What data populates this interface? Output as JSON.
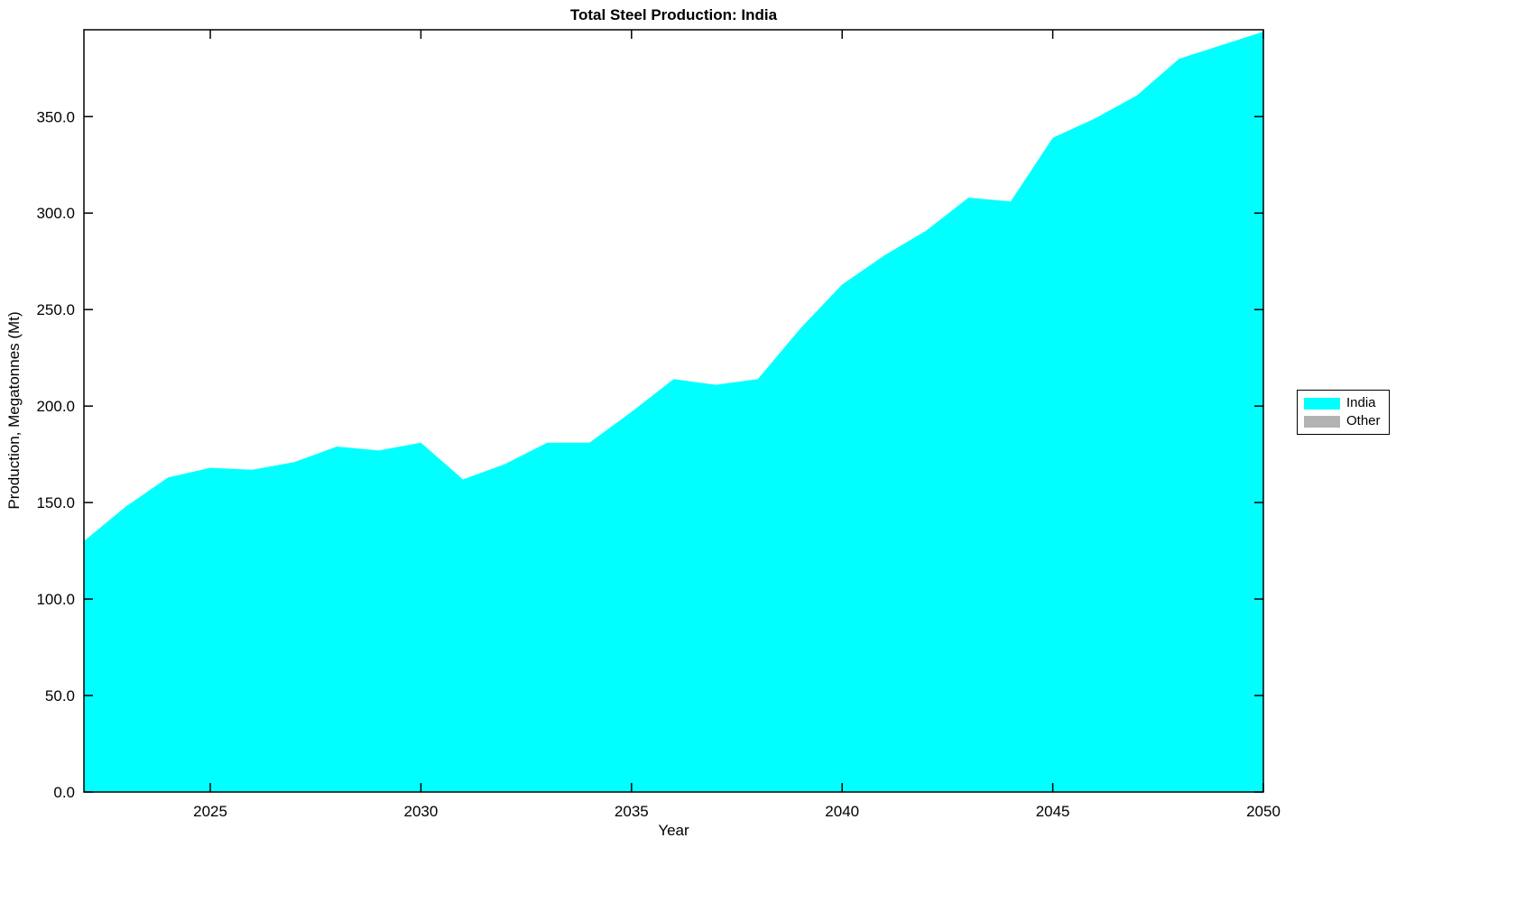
{
  "chart_data": {
    "type": "area",
    "title": "Total Steel Production: India",
    "xlabel": "Year",
    "ylabel": "Production, Megatonnes (Mt)",
    "xlim": [
      2022,
      2050
    ],
    "ylim": [
      0,
      395
    ],
    "grid": false,
    "x_ticks": [
      2025,
      2030,
      2035,
      2040,
      2045,
      2050
    ],
    "y_ticks": [
      0,
      50,
      100,
      150,
      200,
      250,
      300,
      350
    ],
    "y_tick_labels": [
      "0.0",
      "50.0",
      "100.0",
      "150.0",
      "200.0",
      "250.0",
      "300.0",
      "350.0"
    ],
    "x": [
      2022,
      2023,
      2024,
      2025,
      2026,
      2027,
      2028,
      2029,
      2030,
      2031,
      2032,
      2033,
      2034,
      2035,
      2036,
      2037,
      2038,
      2039,
      2040,
      2041,
      2042,
      2043,
      2044,
      2045,
      2046,
      2047,
      2048,
      2049,
      2050
    ],
    "series": [
      {
        "name": "India",
        "color": "#00FFFF",
        "values": [
          130,
          148,
          163,
          168,
          167,
          171,
          179,
          177,
          181,
          162,
          170,
          181,
          181,
          197,
          214,
          211,
          214,
          240,
          263,
          278,
          291,
          308,
          306,
          339,
          349,
          361,
          380,
          387,
          394
        ]
      },
      {
        "name": "Other",
        "color": "#b3b3b3",
        "values": [
          0,
          0,
          0,
          0,
          0,
          0,
          0,
          0,
          0,
          0,
          0,
          0,
          0,
          0,
          0,
          0,
          0,
          0,
          0,
          0,
          0,
          0,
          0,
          0,
          0,
          0,
          0,
          0,
          0
        ]
      }
    ],
    "legend": {
      "position": "right",
      "entries": [
        {
          "label": "India",
          "color": "#00FFFF"
        },
        {
          "label": "Other",
          "color": "#b3b3b3"
        }
      ]
    }
  }
}
